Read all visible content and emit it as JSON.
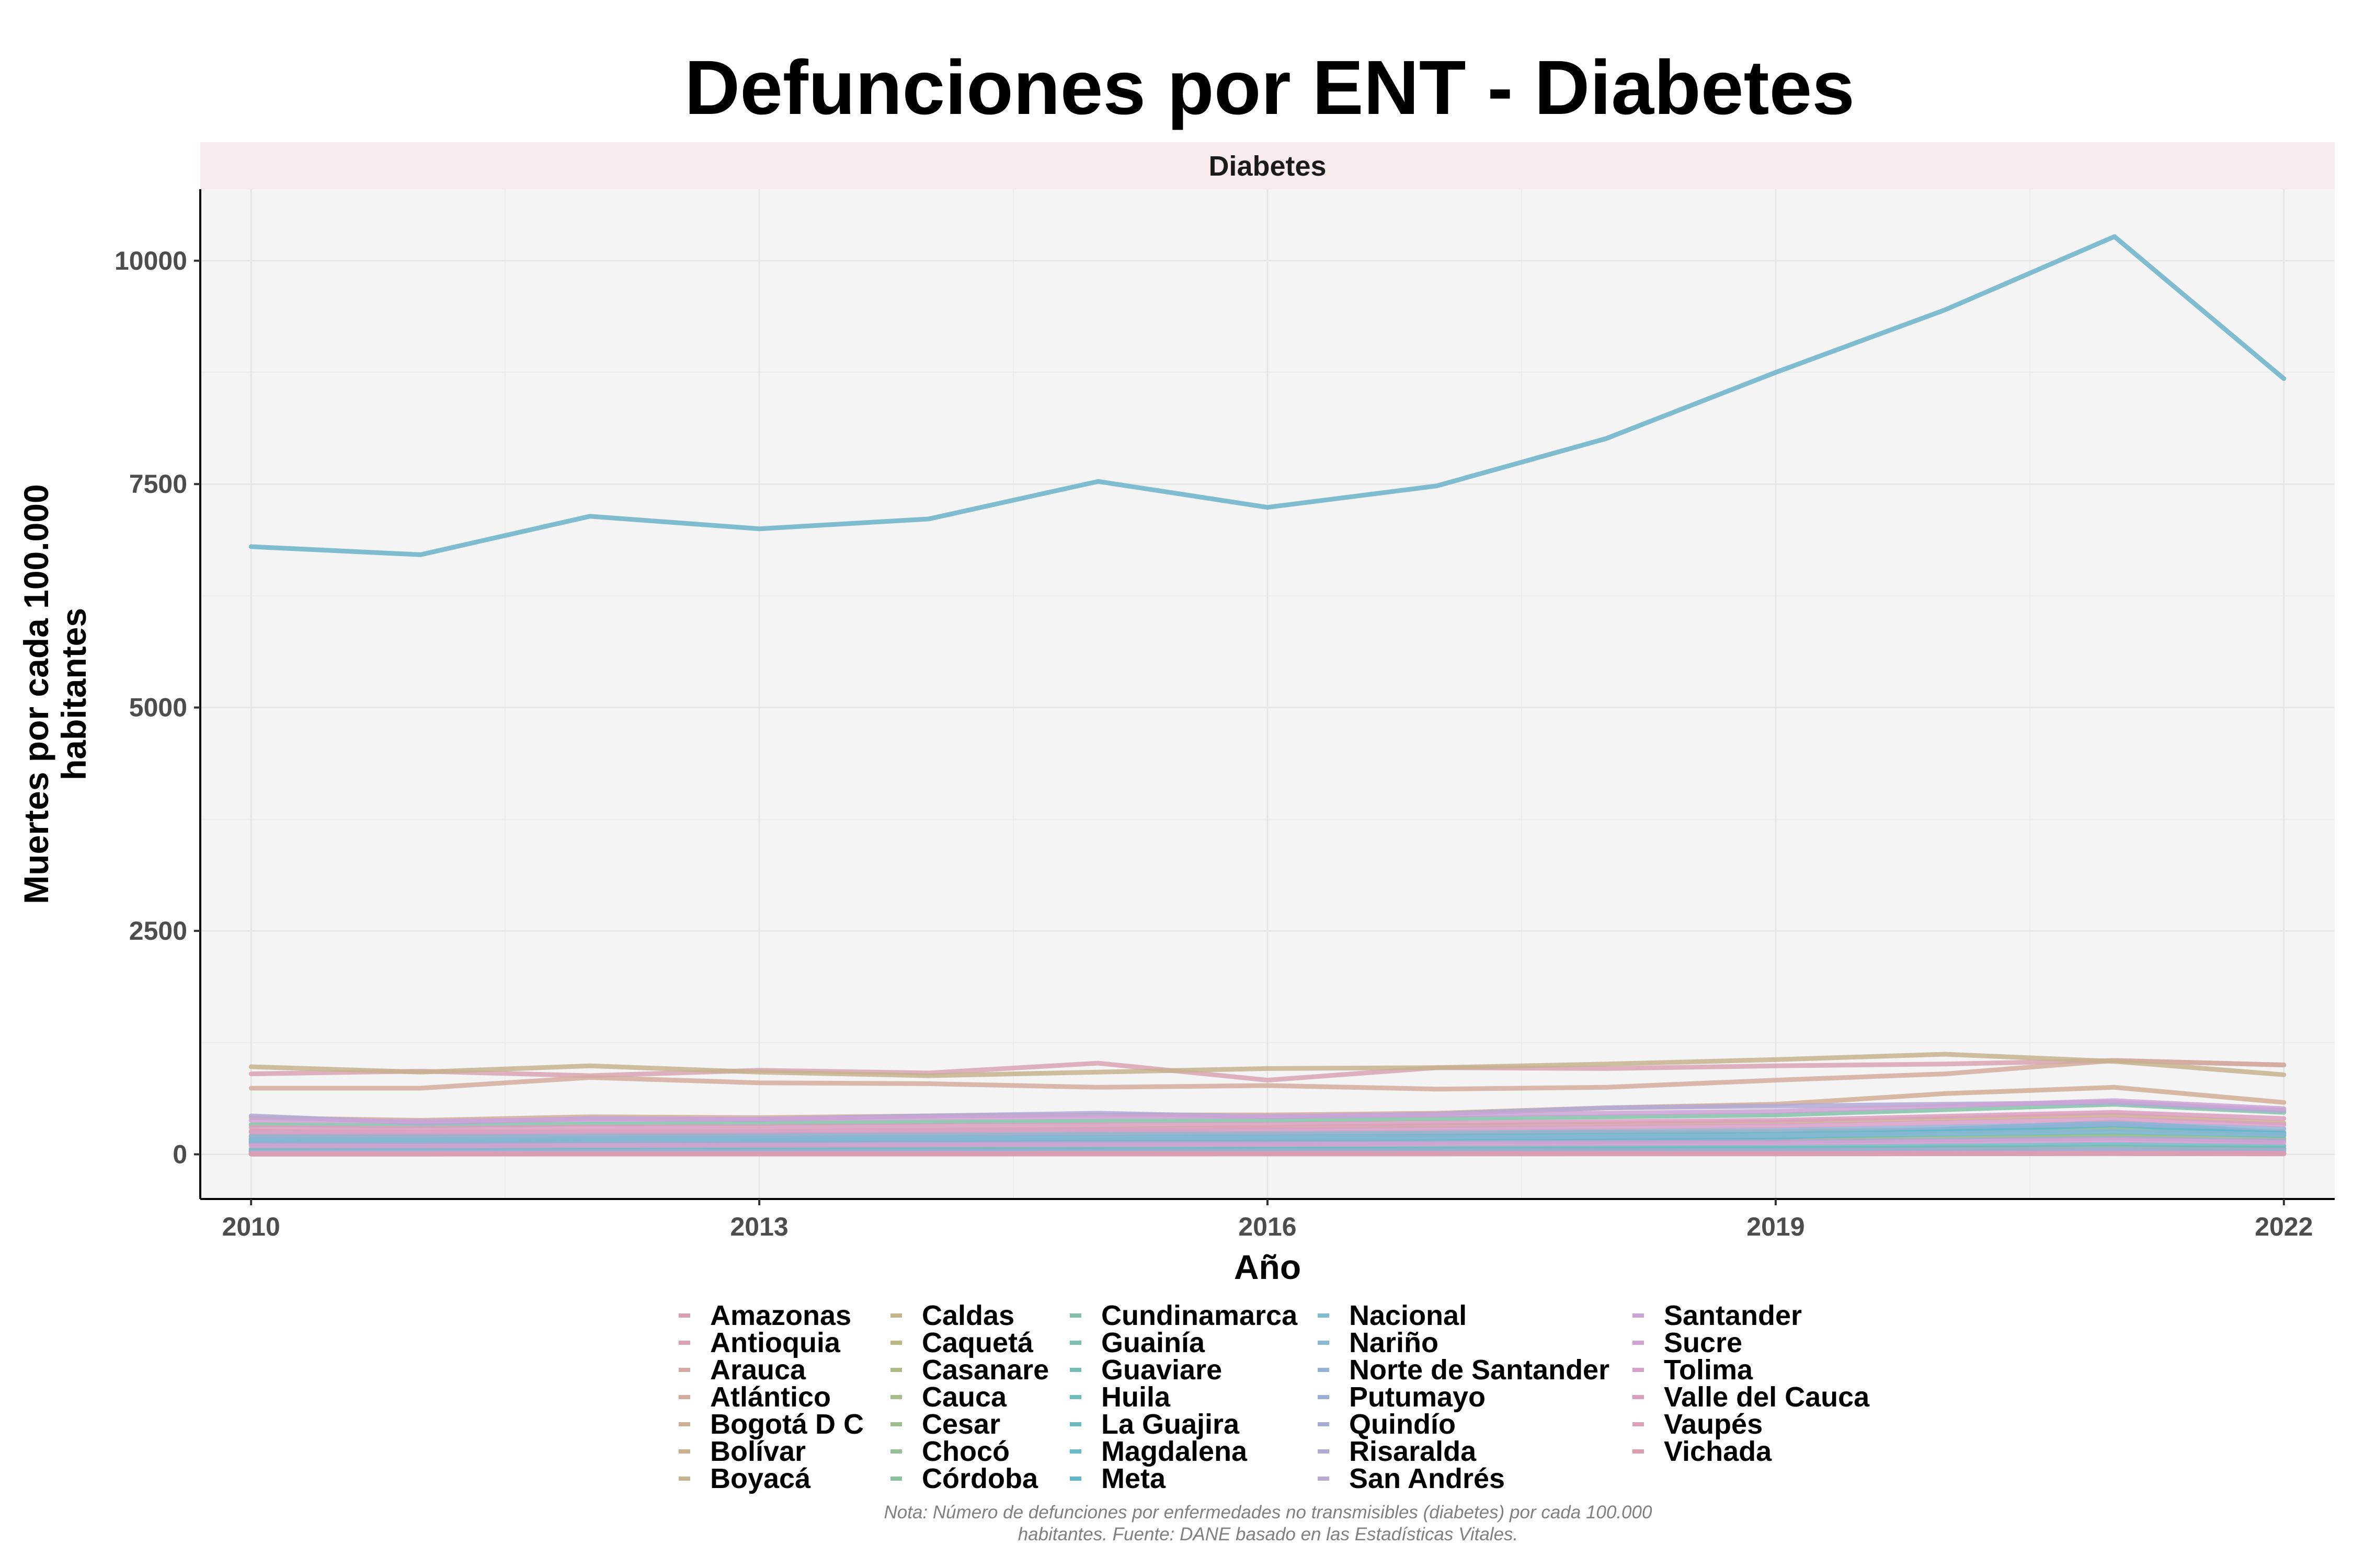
{
  "title": "Defunciones por ENT - Diabetes",
  "caption_line1": "Nota: Número de defunciones por enfermedades no transmisibles (diabetes) por cada 100.000",
  "caption_line2": "habitantes. Fuente: DANE basado en las Estadísticas Vitales.",
  "chart_data": {
    "type": "line",
    "title": "Defunciones por ENT - Diabetes",
    "facet_label": "Diabetes",
    "xlabel": "Año",
    "ylabel": "Muertes por cada 100.000 habitantes",
    "xlim": [
      2009.7,
      2022.3
    ],
    "ylim": [
      -500,
      10800
    ],
    "x_ticks": [
      2010,
      2013,
      2016,
      2019,
      2022
    ],
    "y_ticks": [
      0,
      2500,
      5000,
      7500,
      10000
    ],
    "grid": true,
    "legend_position": "bottom",
    "x": [
      2010,
      2011,
      2012,
      2013,
      2014,
      2015,
      2016,
      2017,
      2018,
      2019,
      2020,
      2021,
      2022
    ],
    "series": [
      {
        "name": "Amazonas",
        "color": "#D9A0B4",
        "values": [
          5,
          6,
          7,
          6,
          8,
          7,
          9,
          8,
          10,
          9,
          14,
          16,
          11
        ]
      },
      {
        "name": "Antioquia",
        "color": "#D9A3B3",
        "values": [
          900,
          930,
          880,
          940,
          910,
          1020,
          830,
          970,
          960,
          990,
          1010,
          1050,
          1000
        ]
      },
      {
        "name": "Arauca",
        "color": "#D9A8A5",
        "values": [
          35,
          38,
          40,
          42,
          41,
          45,
          44,
          47,
          50,
          52,
          65,
          80,
          60
        ]
      },
      {
        "name": "Atlántico",
        "color": "#D4AB9E",
        "values": [
          740,
          740,
          860,
          800,
          790,
          750,
          770,
          730,
          750,
          830,
          900,
          1050,
          1000
        ]
      },
      {
        "name": "Bogotá D C",
        "color": "#D0AD95",
        "values": [
          410,
          380,
          420,
          410,
          430,
          440,
          440,
          460,
          520,
          560,
          680,
          750,
          580
        ]
      },
      {
        "name": "Bolívar",
        "color": "#CCAF8C",
        "values": [
          260,
          240,
          250,
          255,
          270,
          280,
          300,
          320,
          340,
          360,
          400,
          440,
          350
        ]
      },
      {
        "name": "Boyacá",
        "color": "#C6B28E",
        "values": [
          980,
          920,
          990,
          920,
          880,
          920,
          960,
          970,
          1010,
          1060,
          1120,
          1040,
          890
        ]
      },
      {
        "name": "Caldas",
        "color": "#C4B48A",
        "values": [
          200,
          190,
          205,
          210,
          215,
          220,
          225,
          235,
          245,
          255,
          275,
          300,
          250
        ]
      },
      {
        "name": "Caquetá",
        "color": "#B9B883",
        "values": [
          45,
          46,
          48,
          50,
          52,
          55,
          56,
          58,
          60,
          63,
          72,
          80,
          66
        ]
      },
      {
        "name": "Casanare",
        "color": "#ADBB85",
        "values": [
          40,
          42,
          44,
          46,
          48,
          50,
          52,
          54,
          57,
          60,
          70,
          78,
          64
        ]
      },
      {
        "name": "Cauca",
        "color": "#A6BD8A",
        "values": [
          130,
          125,
          135,
          140,
          145,
          150,
          152,
          158,
          165,
          172,
          195,
          215,
          180
        ]
      },
      {
        "name": "Cesar",
        "color": "#9EBE8E",
        "values": [
          120,
          118,
          125,
          130,
          135,
          140,
          142,
          150,
          158,
          165,
          185,
          205,
          170
        ]
      },
      {
        "name": "Chocó",
        "color": "#96C095",
        "values": [
          25,
          26,
          28,
          27,
          30,
          31,
          32,
          33,
          35,
          36,
          42,
          48,
          38
        ]
      },
      {
        "name": "Córdoba",
        "color": "#8BC29E",
        "values": [
          170,
          165,
          175,
          180,
          188,
          195,
          200,
          210,
          220,
          230,
          255,
          280,
          235
        ]
      },
      {
        "name": "Cundinamarca",
        "color": "#82C1A8",
        "values": [
          330,
          320,
          340,
          345,
          360,
          370,
          380,
          400,
          420,
          440,
          500,
          560,
          470
        ]
      },
      {
        "name": "Guainía",
        "color": "#7BC0B0",
        "values": [
          3,
          3,
          4,
          4,
          5,
          4,
          5,
          5,
          6,
          6,
          8,
          9,
          7
        ]
      },
      {
        "name": "Guaviare",
        "color": "#73BFB6",
        "values": [
          6,
          7,
          7,
          8,
          8,
          9,
          9,
          10,
          10,
          11,
          13,
          15,
          12
        ]
      },
      {
        "name": "Huila",
        "color": "#6EBDBD",
        "values": [
          150,
          145,
          155,
          160,
          165,
          170,
          175,
          180,
          190,
          200,
          225,
          250,
          210
        ]
      },
      {
        "name": "La Guajira",
        "color": "#6ABBC3",
        "values": [
          60,
          58,
          62,
          65,
          67,
          70,
          72,
          75,
          80,
          85,
          100,
          115,
          95
        ]
      },
      {
        "name": "Magdalena",
        "color": "#67BAC9",
        "values": [
          170,
          165,
          175,
          180,
          185,
          190,
          195,
          205,
          215,
          225,
          280,
          360,
          240
        ]
      },
      {
        "name": "Meta",
        "color": "#62B6CC",
        "values": [
          140,
          135,
          145,
          150,
          155,
          160,
          165,
          172,
          180,
          190,
          260,
          330,
          230
        ]
      },
      {
        "name": "Nacional",
        "color": "#80BCD0",
        "values": [
          6800,
          6710,
          7140,
          7000,
          7110,
          7530,
          7240,
          7480,
          8010,
          8750,
          9450,
          10270,
          8680
        ]
      },
      {
        "name": "Nariño",
        "color": "#8AB7D4",
        "values": [
          160,
          155,
          165,
          170,
          175,
          180,
          185,
          192,
          200,
          210,
          235,
          260,
          220
        ]
      },
      {
        "name": "Norte de Santander",
        "color": "#93B2D6",
        "values": [
          210,
          205,
          215,
          220,
          228,
          235,
          240,
          250,
          262,
          275,
          305,
          340,
          285
        ]
      },
      {
        "name": "Putumayo",
        "color": "#9CAED7",
        "values": [
          30,
          31,
          33,
          34,
          35,
          37,
          38,
          40,
          42,
          44,
          50,
          56,
          46
        ]
      },
      {
        "name": "Quindío",
        "color": "#A8AAD7",
        "values": [
          110,
          108,
          114,
          116,
          120,
          124,
          126,
          130,
          136,
          142,
          160,
          178,
          150
        ]
      },
      {
        "name": "Risaralda",
        "color": "#B2A8D6",
        "values": [
          430,
          350,
          400,
          390,
          430,
          460,
          420,
          450,
          520,
          540,
          560,
          580,
          490
        ]
      },
      {
        "name": "San Andrés",
        "color": "#BDA7D3",
        "values": [
          10,
          10,
          11,
          11,
          12,
          12,
          13,
          13,
          14,
          14,
          17,
          19,
          15
        ]
      },
      {
        "name": "Santander",
        "color": "#CBA3D5",
        "values": [
          380,
          370,
          390,
          395,
          410,
          420,
          425,
          440,
          460,
          480,
          540,
          600,
          510
        ]
      },
      {
        "name": "Sucre",
        "color": "#D2A2D0",
        "values": [
          95,
          92,
          98,
          100,
          104,
          108,
          110,
          115,
          120,
          126,
          142,
          158,
          132
        ]
      },
      {
        "name": "Tolima",
        "color": "#D8A0C8",
        "values": [
          250,
          245,
          255,
          260,
          268,
          275,
          280,
          290,
          305,
          318,
          355,
          395,
          330
        ]
      },
      {
        "name": "Valle del Cauca",
        "color": "#DB9FBE",
        "values": [
          300,
          290,
          305,
          310,
          320,
          330,
          335,
          350,
          365,
          380,
          425,
          470,
          400
        ]
      },
      {
        "name": "Vaupés",
        "color": "#DB9FB6",
        "values": [
          2,
          2,
          3,
          3,
          3,
          3,
          4,
          4,
          4,
          5,
          6,
          7,
          5
        ]
      },
      {
        "name": "Vichada",
        "color": "#DA9EAE",
        "values": [
          4,
          4,
          5,
          5,
          5,
          6,
          6,
          6,
          7,
          7,
          9,
          10,
          8
        ]
      }
    ]
  }
}
